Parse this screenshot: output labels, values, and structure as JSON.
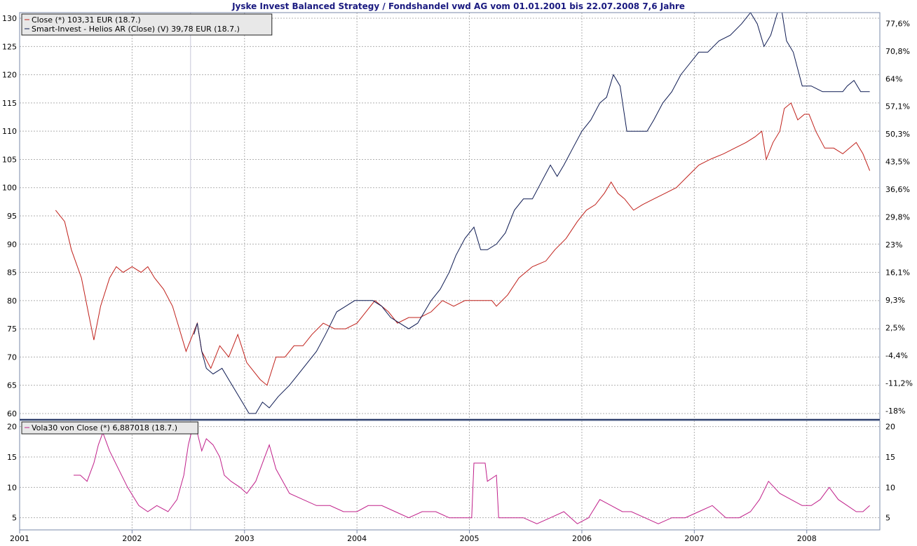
{
  "chart_data": [
    {
      "type": "line",
      "title": "Jyske Invest Balanced Strategy / Fondshandel vwd AG vom 01.01.2001 bis 22.07.2008 7,6 Jahre",
      "x_ticks": [
        "2001",
        "2002",
        "2003",
        "2004",
        "2005",
        "2006",
        "2007",
        "2008"
      ],
      "xlim": [
        2001.0,
        2008.65
      ],
      "ylim": [
        59,
        131
      ],
      "y_ticks_left": [
        60,
        65,
        70,
        75,
        80,
        85,
        90,
        95,
        100,
        105,
        110,
        115,
        120,
        125,
        130
      ],
      "y_ticks_right": [
        "-18%",
        "-11,2%",
        "-4,4%",
        "2,5%",
        "9,3%",
        "16,1%",
        "23%",
        "29,8%",
        "36,6%",
        "43,5%",
        "50,3%",
        "57,1%",
        "64%",
        "70,8%",
        "77,6%"
      ],
      "y_ticks_right_values": [
        60.5,
        65.4,
        70.3,
        75.2,
        80.1,
        85.0,
        89.9,
        94.8,
        99.7,
        104.6,
        109.5,
        114.4,
        119.3,
        124.2,
        129.1
      ],
      "grid": true,
      "legend_position": "top-left",
      "series": [
        {
          "name": "Close (*) 103,31 EUR (18.7.)",
          "color": "#c0201a",
          "x": [
            2001.32,
            2001.4,
            2001.46,
            2001.55,
            2001.62,
            2001.66,
            2001.72,
            2001.8,
            2001.86,
            2001.92,
            2002.0,
            2002.08,
            2002.14,
            2002.2,
            2002.28,
            2002.36,
            2002.42,
            2002.48,
            2002.52,
            2002.58,
            2002.62,
            2002.7,
            2002.78,
            2002.86,
            2002.94,
            2003.02,
            2003.1,
            2003.14,
            2003.2,
            2003.28,
            2003.36,
            2003.44,
            2003.52,
            2003.6,
            2003.7,
            2003.8,
            2003.9,
            2004.0,
            2004.08,
            2004.16,
            2004.22,
            2004.28,
            2004.36,
            2004.46,
            2004.56,
            2004.66,
            2004.76,
            2004.86,
            2004.96,
            2005.06,
            2005.12,
            2005.2,
            2005.24,
            2005.34,
            2005.44,
            2005.56,
            2005.68,
            2005.76,
            2005.86,
            2005.96,
            2006.04,
            2006.12,
            2006.2,
            2006.26,
            2006.32,
            2006.38,
            2006.46,
            2006.54,
            2006.64,
            2006.74,
            2006.84,
            2006.94,
            2007.04,
            2007.14,
            2007.26,
            2007.36,
            2007.46,
            2007.54,
            2007.6,
            2007.64,
            2007.7,
            2007.76,
            2007.8,
            2007.86,
            2007.92,
            2007.98,
            2008.02,
            2008.08,
            2008.16,
            2008.24,
            2008.32,
            2008.38,
            2008.44,
            2008.5,
            2008.56
          ],
          "y": [
            96,
            94,
            89,
            84,
            77,
            73,
            79,
            84,
            86,
            85,
            86,
            85,
            86,
            84,
            82,
            79,
            75,
            71,
            73,
            76,
            71,
            68,
            72,
            70,
            74,
            69,
            67,
            66,
            65,
            70,
            70,
            72,
            72,
            74,
            76,
            75,
            75,
            76,
            78,
            80,
            79,
            78,
            76,
            77,
            77,
            78,
            80,
            79,
            80,
            80,
            80,
            80,
            79,
            81,
            84,
            86,
            87,
            89,
            91,
            94,
            96,
            97,
            99,
            101,
            99,
            98,
            96,
            97,
            98,
            99,
            100,
            102,
            104,
            105,
            106,
            107,
            108,
            109,
            110,
            105,
            108,
            110,
            114,
            115,
            112,
            113,
            113,
            110,
            107,
            107,
            106,
            107,
            108,
            106,
            103
          ]
        },
        {
          "name": "Smart-Invest - Helios AR (Close) (V) 39,78 EUR (18.7.)",
          "color": "#0d1a52",
          "x": [
            2002.55,
            2002.58,
            2002.62,
            2002.66,
            2002.72,
            2002.8,
            2002.86,
            2002.92,
            2002.98,
            2003.04,
            2003.1,
            2003.16,
            2003.22,
            2003.3,
            2003.4,
            2003.48,
            2003.56,
            2003.64,
            2003.72,
            2003.82,
            2003.9,
            2003.98,
            2004.06,
            2004.14,
            2004.22,
            2004.3,
            2004.38,
            2004.46,
            2004.54,
            2004.6,
            2004.66,
            2004.74,
            2004.82,
            2004.88,
            2004.96,
            2005.04,
            2005.1,
            2005.16,
            2005.24,
            2005.32,
            2005.4,
            2005.48,
            2005.56,
            2005.64,
            2005.72,
            2005.78,
            2005.84,
            2005.92,
            2006.0,
            2006.08,
            2006.16,
            2006.22,
            2006.28,
            2006.34,
            2006.4,
            2006.5,
            2006.58,
            2006.64,
            2006.72,
            2006.8,
            2006.88,
            2006.96,
            2007.04,
            2007.12,
            2007.22,
            2007.32,
            2007.42,
            2007.5,
            2007.56,
            2007.62,
            2007.68,
            2007.74,
            2007.78,
            2007.82,
            2007.88,
            2007.96,
            2008.04,
            2008.14,
            2008.24,
            2008.32,
            2008.36,
            2008.42,
            2008.48,
            2008.56
          ],
          "y": [
            74,
            76,
            71,
            68,
            67,
            68,
            66,
            64,
            62,
            60,
            60,
            62,
            61,
            63,
            65,
            67,
            69,
            71,
            74,
            78,
            79,
            80,
            80,
            80,
            79,
            77,
            76,
            75,
            76,
            78,
            80,
            82,
            85,
            88,
            91,
            93,
            89,
            89,
            90,
            92,
            96,
            98,
            98,
            101,
            104,
            102,
            104,
            107,
            110,
            112,
            115,
            116,
            120,
            118,
            110,
            110,
            110,
            112,
            115,
            117,
            120,
            122,
            124,
            124,
            126,
            127,
            129,
            131,
            129,
            125,
            127,
            131,
            131,
            126,
            124,
            118,
            118,
            117,
            117,
            117,
            118,
            119,
            117,
            117
          ]
        }
      ]
    },
    {
      "type": "line",
      "xlim": [
        2001.0,
        2008.65
      ],
      "ylim": [
        3,
        21
      ],
      "y_ticks_left": [
        5,
        10,
        15,
        20
      ],
      "y_ticks_right": [
        5,
        10,
        15,
        20
      ],
      "grid": true,
      "legend_position": "top-left",
      "series": [
        {
          "name": "Vola30 von Close (*) 6,887018 (18.7.)",
          "color": "#c0208a",
          "x": [
            2001.48,
            2001.54,
            2001.6,
            2001.66,
            2001.7,
            2001.74,
            2001.8,
            2001.88,
            2001.96,
            2002.06,
            2002.14,
            2002.22,
            2002.32,
            2002.4,
            2002.46,
            2002.5,
            2002.54,
            2002.58,
            2002.62,
            2002.66,
            2002.72,
            2002.78,
            2002.82,
            2002.88,
            2002.96,
            2003.02,
            2003.1,
            2003.16,
            2003.22,
            2003.28,
            2003.4,
            2003.52,
            2003.64,
            2003.76,
            2003.88,
            2004.0,
            2004.1,
            2004.22,
            2004.34,
            2004.46,
            2004.58,
            2004.7,
            2004.82,
            2004.94,
            2005.02,
            2005.04,
            2005.14,
            2005.16,
            2005.24,
            2005.26,
            2005.36,
            2005.48,
            2005.6,
            2005.72,
            2005.84,
            2005.96,
            2006.06,
            2006.16,
            2006.26,
            2006.36,
            2006.44,
            2006.56,
            2006.68,
            2006.8,
            2006.92,
            2007.04,
            2007.16,
            2007.28,
            2007.4,
            2007.5,
            2007.58,
            2007.66,
            2007.76,
            2007.86,
            2007.96,
            2008.04,
            2008.12,
            2008.2,
            2008.28,
            2008.36,
            2008.44,
            2008.5,
            2008.56
          ],
          "y": [
            12,
            12,
            11,
            14,
            17,
            19,
            16,
            13,
            10,
            7,
            6,
            7,
            6,
            8,
            12,
            17,
            20,
            19,
            16,
            18,
            17,
            15,
            12,
            11,
            10,
            9,
            11,
            14,
            17,
            13,
            9,
            8,
            7,
            7,
            6,
            6,
            7,
            7,
            6,
            5,
            6,
            6,
            5,
            5,
            5,
            14,
            14,
            11,
            12,
            5,
            5,
            5,
            4,
            5,
            6,
            4,
            5,
            8,
            7,
            6,
            6,
            5,
            4,
            5,
            5,
            6,
            7,
            5,
            5,
            6,
            8,
            11,
            9,
            8,
            7,
            7,
            8,
            10,
            8,
            7,
            6,
            6,
            7
          ]
        }
      ]
    }
  ]
}
